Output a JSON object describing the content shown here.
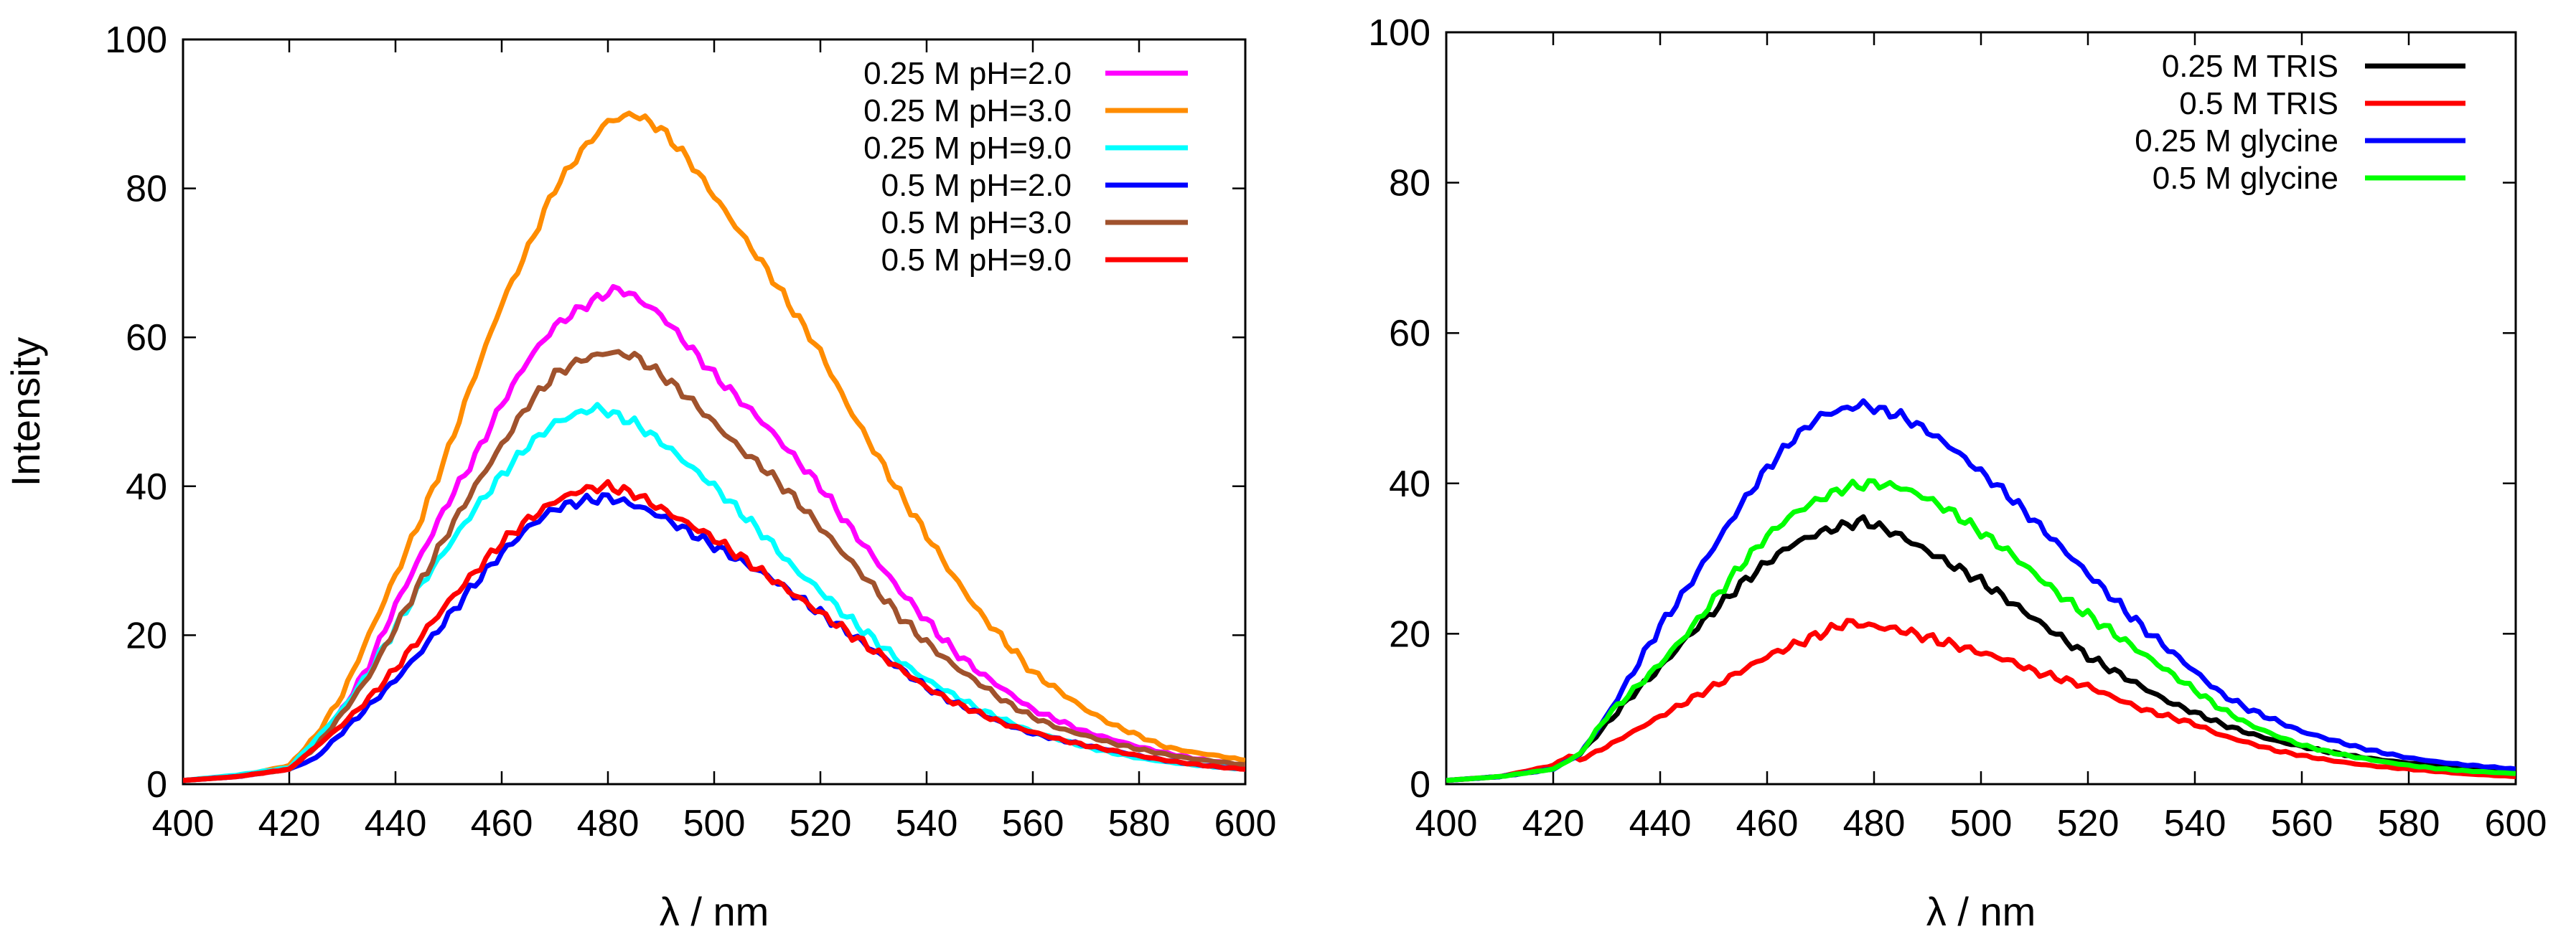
{
  "chart_data": [
    {
      "type": "line",
      "title": "",
      "xlabel": "λ / nm",
      "ylabel": "Intensity",
      "xlim": [
        400,
        600
      ],
      "ylim": [
        0,
        100
      ],
      "xticks": [
        400,
        420,
        440,
        460,
        480,
        500,
        520,
        540,
        560,
        580,
        600
      ],
      "yticks": [
        0,
        20,
        40,
        60,
        80,
        100
      ],
      "legend_position": "top-right",
      "grid": false,
      "series": [
        {
          "name": "0.25 M pH=2.0",
          "color": "#ff00ff",
          "peak_x": 482,
          "peak_y": 66.5,
          "x": [
            400,
            410,
            420,
            425,
            430,
            435,
            440,
            445,
            450,
            455,
            460,
            465,
            470,
            475,
            480,
            482,
            485,
            490,
            495,
            500,
            505,
            510,
            515,
            520,
            525,
            530,
            535,
            540,
            545,
            550,
            555,
            560,
            565,
            570,
            575,
            580,
            585,
            590,
            595,
            600
          ],
          "y": [
            0.5,
            1.0,
            2.0,
            5.0,
            10.0,
            16.0,
            24.0,
            31.0,
            38.0,
            44.0,
            51.0,
            57.0,
            61.5,
            64.0,
            66.0,
            66.5,
            65.5,
            63.0,
            59.0,
            55.0,
            51.5,
            48.0,
            44.0,
            40.0,
            35.0,
            30.5,
            26.0,
            22.0,
            18.0,
            15.0,
            12.5,
            10.0,
            8.5,
            7.0,
            6.0,
            5.0,
            4.2,
            3.5,
            3.0,
            2.5
          ]
        },
        {
          "name": "0.25 M pH=3.0",
          "color": "#ff8c00",
          "peak_x": 485,
          "peak_y": 90.0,
          "x": [
            400,
            410,
            420,
            425,
            430,
            435,
            440,
            445,
            450,
            455,
            460,
            465,
            470,
            475,
            480,
            485,
            490,
            495,
            500,
            505,
            510,
            515,
            520,
            525,
            530,
            535,
            540,
            545,
            550,
            555,
            560,
            565,
            570,
            575,
            580,
            585,
            590,
            595,
            600
          ],
          "y": [
            0.5,
            1.0,
            2.5,
            6.5,
            12.0,
            20.0,
            28.0,
            36.0,
            45.0,
            55.0,
            64.5,
            72.0,
            80.0,
            85.0,
            89.0,
            90.0,
            88.0,
            84.0,
            79.0,
            74.0,
            69.0,
            63.5,
            58.0,
            51.0,
            45.0,
            39.0,
            33.5,
            28.0,
            23.0,
            19.0,
            15.0,
            12.5,
            10.0,
            8.0,
            6.5,
            5.0,
            4.3,
            3.8,
            3.2
          ]
        },
        {
          "name": "0.25 M pH=9.0",
          "color": "#00ffff",
          "peak_x": 478,
          "peak_y": 50.5,
          "x": [
            400,
            410,
            420,
            425,
            430,
            435,
            440,
            445,
            450,
            455,
            460,
            465,
            470,
            475,
            478,
            480,
            485,
            490,
            495,
            500,
            505,
            510,
            515,
            520,
            525,
            530,
            535,
            540,
            545,
            550,
            555,
            560,
            565,
            570,
            575,
            580,
            585,
            590,
            595,
            600
          ],
          "y": [
            0.5,
            1.2,
            2.2,
            6.0,
            10.0,
            15.0,
            21.0,
            27.0,
            32.0,
            37.0,
            41.5,
            45.5,
            48.5,
            50.0,
            50.5,
            50.0,
            48.5,
            46.0,
            43.0,
            40.0,
            36.5,
            33.0,
            29.0,
            26.0,
            22.5,
            19.5,
            16.5,
            14.0,
            12.0,
            10.0,
            8.5,
            7.0,
            6.0,
            5.0,
            4.2,
            3.5,
            3.0,
            2.6,
            2.3,
            2.0
          ]
        },
        {
          "name": "0.5 M pH=2.0",
          "color": "#0000ff",
          "peak_x": 480,
          "peak_y": 38.5,
          "x": [
            400,
            410,
            420,
            425,
            430,
            435,
            440,
            445,
            450,
            455,
            460,
            465,
            470,
            475,
            480,
            485,
            490,
            495,
            500,
            505,
            510,
            515,
            520,
            525,
            530,
            535,
            540,
            545,
            550,
            555,
            560,
            565,
            570,
            575,
            580,
            585,
            590,
            595,
            600
          ],
          "y": [
            0.5,
            1.0,
            2.0,
            3.5,
            7.0,
            10.5,
            14.0,
            18.0,
            22.5,
            27.0,
            31.0,
            34.5,
            37.0,
            38.0,
            38.5,
            37.5,
            36.0,
            34.0,
            32.0,
            30.0,
            28.0,
            25.5,
            23.0,
            20.5,
            18.0,
            15.5,
            13.0,
            11.0,
            9.5,
            8.0,
            6.8,
            6.0,
            5.2,
            4.5,
            3.8,
            3.2,
            2.7,
            2.3,
            2.0
          ]
        },
        {
          "name": "0.5 M pH=3.0",
          "color": "#a0522d",
          "peak_x": 481,
          "peak_y": 58.0,
          "x": [
            400,
            410,
            420,
            425,
            430,
            435,
            440,
            445,
            450,
            455,
            460,
            465,
            470,
            475,
            480,
            485,
            490,
            495,
            500,
            505,
            510,
            515,
            520,
            525,
            530,
            535,
            540,
            545,
            550,
            555,
            560,
            565,
            570,
            575,
            580,
            585,
            590,
            595,
            600
          ],
          "y": [
            0.5,
            1.0,
            2.0,
            5.0,
            9.5,
            14.5,
            21.0,
            27.5,
            34.0,
            40.0,
            45.5,
            51.0,
            55.0,
            57.0,
            58.0,
            57.5,
            55.0,
            52.0,
            48.5,
            45.0,
            42.0,
            38.5,
            34.5,
            30.5,
            26.5,
            22.5,
            19.0,
            16.0,
            13.5,
            11.0,
            9.0,
            7.5,
            6.5,
            5.5,
            4.7,
            4.0,
            3.4,
            3.0,
            2.6
          ]
        },
        {
          "name": "0.5 M pH=9.0",
          "color": "#ff0000",
          "peak_x": 480,
          "peak_y": 40.0,
          "x": [
            400,
            410,
            420,
            425,
            430,
            435,
            440,
            445,
            450,
            455,
            460,
            465,
            470,
            475,
            480,
            485,
            490,
            495,
            500,
            505,
            510,
            515,
            520,
            525,
            530,
            535,
            540,
            545,
            550,
            555,
            560,
            565,
            570,
            575,
            580,
            585,
            590,
            595,
            600
          ],
          "y": [
            0.5,
            1.0,
            2.0,
            5.0,
            8.0,
            11.5,
            15.5,
            20.0,
            24.5,
            28.5,
            32.5,
            35.5,
            38.0,
            39.5,
            40.0,
            39.0,
            37.0,
            35.0,
            33.0,
            30.5,
            28.0,
            25.5,
            23.0,
            20.5,
            18.0,
            15.5,
            13.0,
            11.0,
            9.5,
            8.0,
            7.0,
            6.0,
            5.2,
            4.5,
            3.8,
            3.2,
            2.7,
            2.3,
            2.0
          ]
        }
      ]
    },
    {
      "type": "line",
      "title": "",
      "xlabel": "λ / nm",
      "ylabel": "",
      "xlim": [
        400,
        600
      ],
      "ylim": [
        0,
        100
      ],
      "xticks": [
        400,
        420,
        440,
        460,
        480,
        500,
        520,
        540,
        560,
        580,
        600
      ],
      "yticks": [
        0,
        20,
        40,
        60,
        80,
        100
      ],
      "legend_position": "top-right",
      "grid": false,
      "series": [
        {
          "name": "0.25 M TRIS",
          "color": "#000000",
          "peak_x": 478,
          "peak_y": 35.0,
          "x": [
            400,
            410,
            420,
            425,
            430,
            435,
            440,
            445,
            450,
            455,
            460,
            465,
            470,
            475,
            478,
            480,
            485,
            490,
            495,
            500,
            505,
            510,
            515,
            520,
            525,
            530,
            535,
            540,
            545,
            550,
            555,
            560,
            565,
            570,
            575,
            580,
            585,
            590,
            595,
            600
          ],
          "y": [
            0.5,
            1.0,
            2.0,
            4.0,
            8.0,
            12.0,
            15.5,
            19.5,
            23.0,
            26.5,
            29.5,
            32.0,
            33.5,
            34.5,
            35.0,
            34.5,
            33.0,
            31.0,
            29.0,
            27.0,
            24.5,
            22.0,
            19.5,
            17.0,
            15.0,
            13.0,
            11.0,
            9.5,
            8.0,
            6.8,
            5.8,
            5.0,
            4.3,
            3.7,
            3.2,
            2.8,
            2.4,
            2.1,
            1.8,
            1.5
          ]
        },
        {
          "name": "0.5 M TRIS",
          "color": "#ff0000",
          "peak_x": 475,
          "peak_y": 21.5,
          "x": [
            400,
            410,
            420,
            423,
            425,
            430,
            435,
            440,
            445,
            450,
            455,
            460,
            465,
            470,
            475,
            480,
            485,
            490,
            495,
            500,
            505,
            510,
            515,
            520,
            525,
            530,
            535,
            540,
            545,
            550,
            555,
            560,
            565,
            570,
            575,
            580,
            585,
            590,
            595,
            600
          ],
          "y": [
            0.5,
            1.0,
            2.5,
            3.8,
            3.2,
            5.0,
            7.0,
            9.0,
            11.0,
            13.0,
            15.0,
            17.0,
            18.5,
            20.0,
            21.5,
            21.0,
            20.5,
            19.5,
            18.5,
            17.5,
            16.5,
            15.0,
            14.0,
            13.0,
            11.5,
            10.0,
            9.0,
            8.0,
            6.5,
            5.5,
            4.5,
            3.8,
            3.2,
            2.7,
            2.3,
            2.0,
            1.7,
            1.4,
            1.2,
            1.0
          ]
        },
        {
          "name": "0.25 M glycine",
          "color": "#0000ff",
          "peak_x": 478,
          "peak_y": 50.5,
          "x": [
            400,
            410,
            420,
            425,
            430,
            435,
            440,
            445,
            450,
            455,
            460,
            465,
            470,
            475,
            478,
            480,
            485,
            490,
            495,
            500,
            505,
            510,
            515,
            520,
            525,
            530,
            535,
            540,
            545,
            550,
            555,
            560,
            565,
            570,
            575,
            580,
            585,
            590,
            595,
            600
          ],
          "y": [
            0.5,
            1.0,
            2.0,
            4.0,
            9.0,
            15.0,
            21.0,
            26.0,
            31.5,
            37.0,
            42.0,
            46.0,
            49.0,
            50.0,
            50.5,
            50.0,
            49.0,
            47.0,
            44.5,
            41.5,
            38.5,
            35.0,
            31.5,
            28.0,
            24.5,
            21.0,
            18.0,
            15.0,
            12.0,
            10.0,
            8.5,
            7.0,
            6.0,
            5.0,
            4.2,
            3.5,
            3.0,
            2.6,
            2.3,
            2.0
          ]
        },
        {
          "name": "0.5 M glycine",
          "color": "#00ff00",
          "peak_x": 480,
          "peak_y": 40.0,
          "x": [
            400,
            410,
            420,
            425,
            430,
            435,
            440,
            445,
            450,
            455,
            460,
            465,
            470,
            475,
            480,
            485,
            490,
            495,
            500,
            505,
            510,
            515,
            520,
            525,
            530,
            535,
            540,
            545,
            550,
            555,
            560,
            565,
            570,
            575,
            580,
            585,
            590,
            595,
            600
          ],
          "y": [
            0.5,
            1.0,
            2.0,
            4.0,
            9.0,
            12.5,
            16.0,
            20.0,
            24.5,
            29.0,
            33.0,
            36.0,
            38.0,
            39.5,
            40.0,
            39.5,
            38.0,
            36.0,
            33.5,
            31.0,
            28.0,
            25.0,
            22.5,
            20.0,
            17.5,
            15.0,
            12.5,
            10.0,
            8.0,
            6.5,
            5.2,
            4.3,
            3.6,
            3.0,
            2.5,
            2.1,
            1.8,
            1.6,
            1.4
          ]
        }
      ]
    }
  ]
}
